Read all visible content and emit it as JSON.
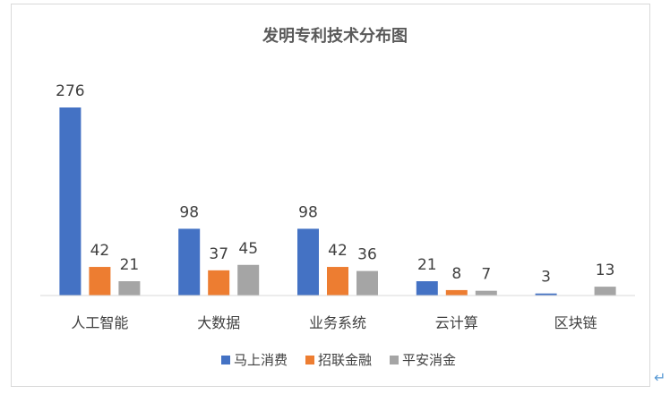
{
  "chart_data": {
    "type": "bar",
    "title": "发明专利技术分布图",
    "xlabel": "",
    "ylabel": "",
    "categories": [
      "人工智能",
      "大数据",
      "业务系统",
      "云计算",
      "区块链"
    ],
    "series": [
      {
        "name": "马上消费",
        "values": [
          276,
          98,
          98,
          21,
          3
        ],
        "color": "#4472c4"
      },
      {
        "name": "招联金融",
        "values": [
          42,
          37,
          42,
          8,
          null
        ],
        "color": "#ed7d31"
      },
      {
        "name": "平安消金",
        "values": [
          21,
          45,
          36,
          7,
          13
        ],
        "color": "#a5a5a5"
      }
    ],
    "ylim": [
      0,
      276
    ],
    "grid": false,
    "legend_position": "bottom",
    "data_labels": true
  },
  "editor": {
    "paragraph_mark_icon": "return-arrow-icon"
  }
}
